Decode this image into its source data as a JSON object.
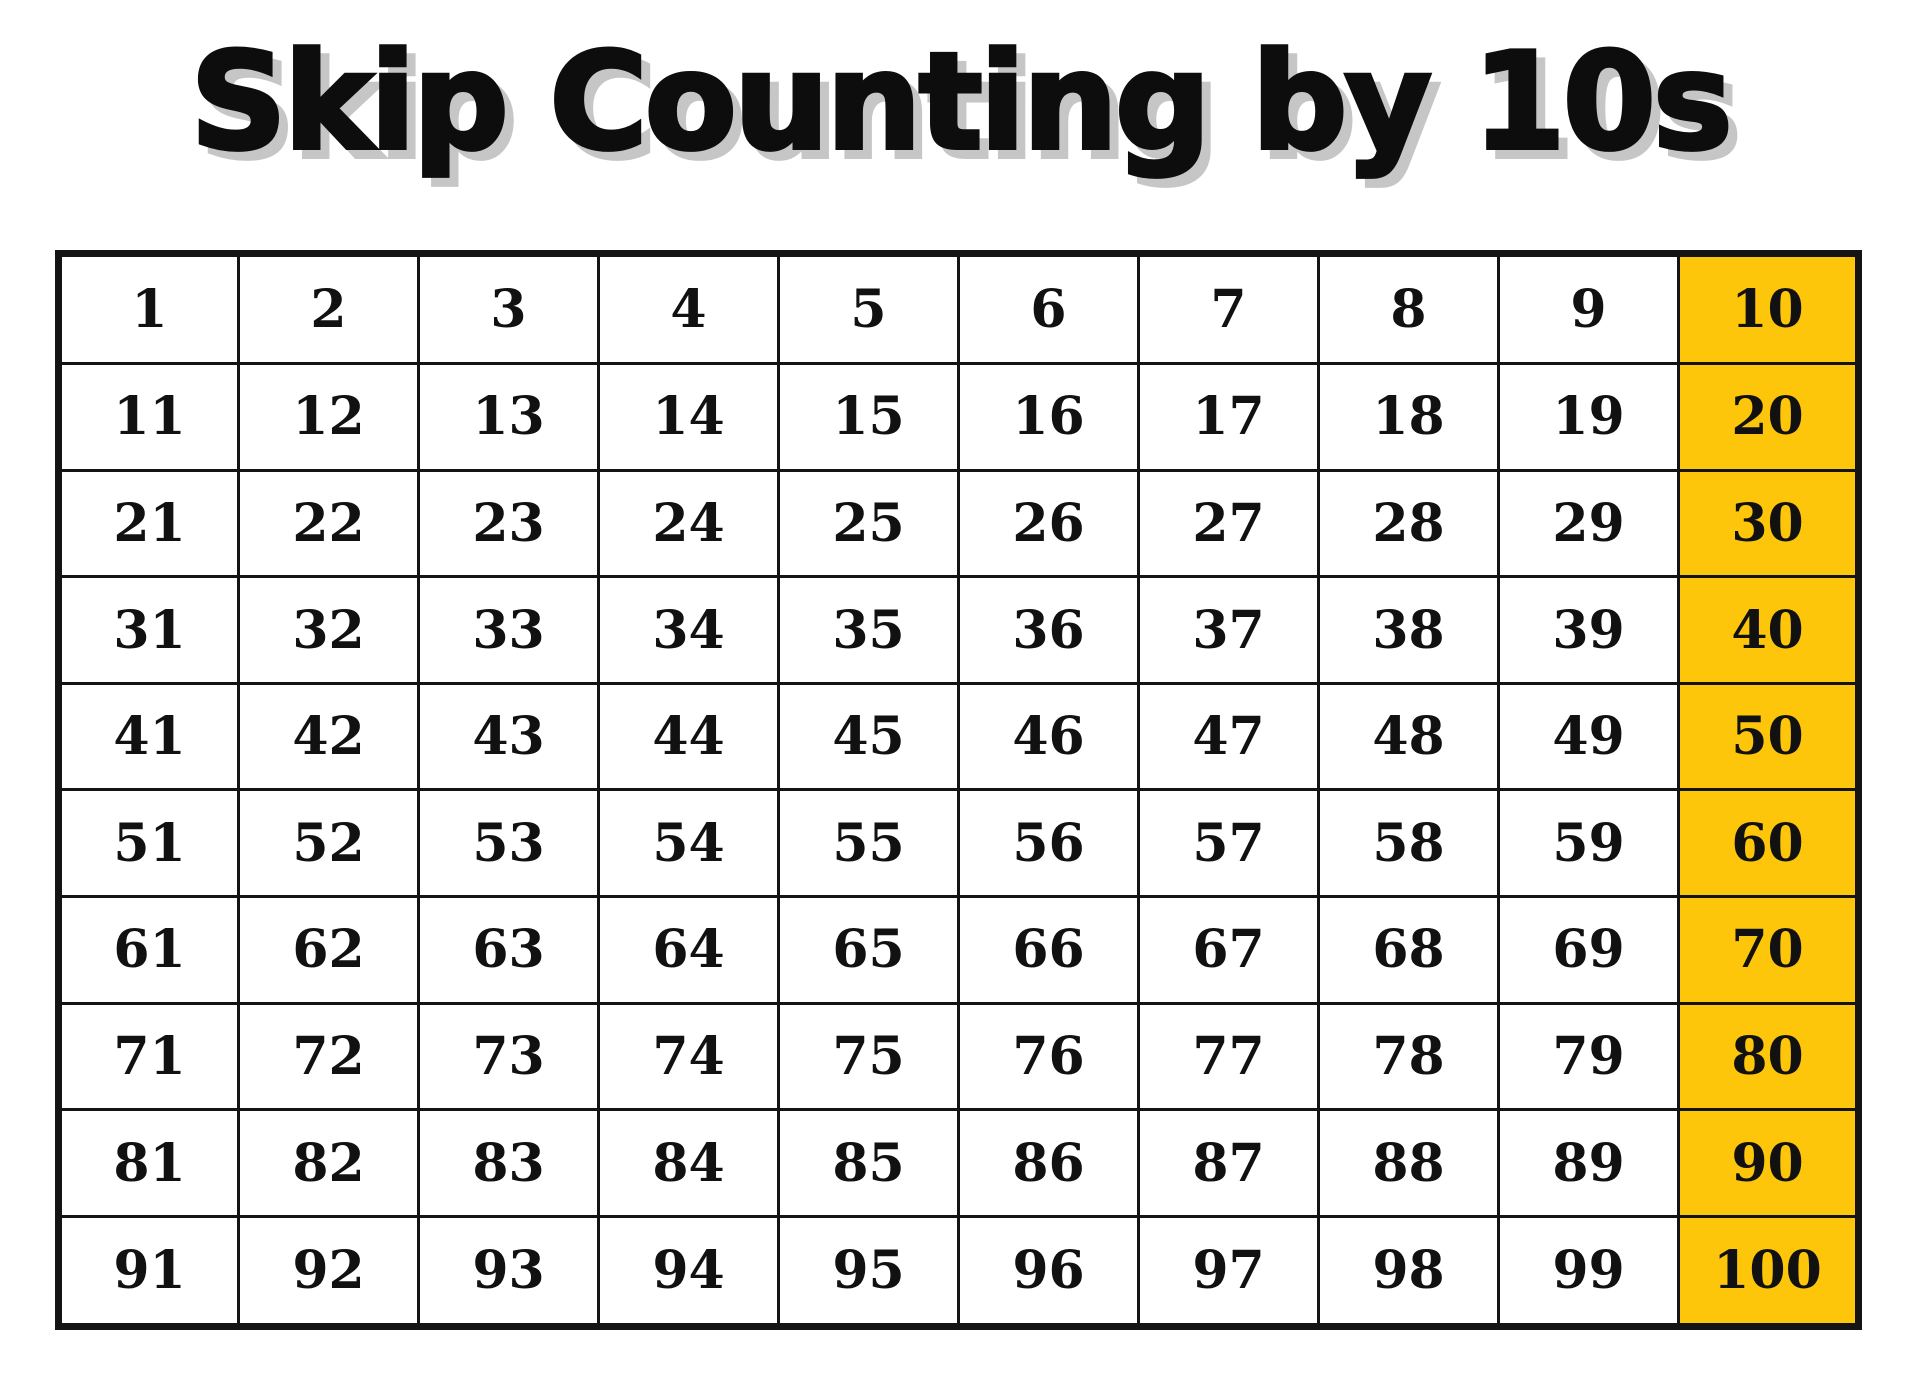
{
  "page": {
    "title": "Skip Counting by 10s",
    "colors": {
      "background": "#ffffff",
      "grid": "#141414",
      "text": "#111111",
      "highlight": "#fdc60a",
      "title_ink": "#0d0d0d",
      "title_shadow": "#c6c6c6"
    }
  },
  "table": {
    "description": "hundred chart, multiples of 10 highlighted in last column",
    "highlight_column_index": 9,
    "highlight_values": [
      10,
      20,
      30,
      40,
      50,
      60,
      70,
      80,
      90,
      100
    ],
    "rows": [
      [
        1,
        2,
        3,
        4,
        5,
        6,
        7,
        8,
        9,
        10
      ],
      [
        11,
        12,
        13,
        14,
        15,
        16,
        17,
        18,
        19,
        20
      ],
      [
        21,
        22,
        23,
        24,
        25,
        26,
        27,
        28,
        29,
        30
      ],
      [
        31,
        32,
        33,
        34,
        35,
        36,
        37,
        38,
        39,
        40
      ],
      [
        41,
        42,
        43,
        44,
        45,
        46,
        47,
        48,
        49,
        50
      ],
      [
        51,
        52,
        53,
        54,
        55,
        56,
        57,
        58,
        59,
        60
      ],
      [
        61,
        62,
        63,
        64,
        65,
        66,
        67,
        68,
        69,
        70
      ],
      [
        71,
        72,
        73,
        74,
        75,
        76,
        77,
        78,
        79,
        80
      ],
      [
        81,
        82,
        83,
        84,
        85,
        86,
        87,
        88,
        89,
        90
      ],
      [
        91,
        92,
        93,
        94,
        95,
        96,
        97,
        98,
        99,
        100
      ]
    ]
  }
}
